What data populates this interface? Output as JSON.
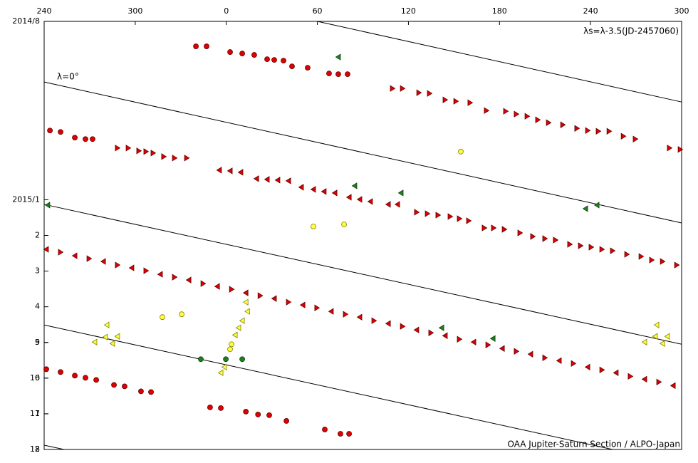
{
  "chart_data": {
    "type": "scatter",
    "annotations": [
      "λs=λ-3.5(JD-2457060)",
      "λ=0°",
      "OAA Jupiter-Saturn Section / ALPO-Japan"
    ],
    "xlim": [
      -120,
      300
    ],
    "xticks": [
      {
        "value": -120,
        "label": "240"
      },
      {
        "value": -60,
        "label": "300"
      },
      0,
      60,
      120,
      180,
      {
        "value": 240,
        "label": "240"
      },
      {
        "value": 300,
        "label": "300"
      }
    ],
    "ylim": [
      0,
      12
    ],
    "yinverted": true,
    "yticks": [
      {
        "value": 0,
        "label": "2014/8"
      },
      9,
      10,
      11,
      12,
      {
        "value": 5,
        "label": "2015/1"
      },
      {
        "value": 6,
        "label": "2"
      },
      {
        "value": 7,
        "label": "3"
      },
      {
        "value": 8,
        "label": "4"
      },
      {
        "value": 9,
        "label": "5"
      },
      {
        "value": 10,
        "label": "6"
      },
      {
        "value": 11,
        "label": "7"
      },
      {
        "value": 12,
        "label": "8"
      }
    ],
    "lines": [
      {
        "x": [
          60,
          300
        ],
        "values": [
          0,
          2.26
        ]
      },
      {
        "x": [
          -120,
          300
        ],
        "values": [
          1.7,
          5.65
        ]
      },
      {
        "x": [
          -120,
          300
        ],
        "values": [
          5.13,
          9.05
        ]
      },
      {
        "x": [
          -120,
          254.5
        ],
        "values": [
          8.51,
          12
        ]
      },
      {
        "x": [
          -120,
          -106.9
        ],
        "values": [
          11.88,
          12
        ]
      }
    ],
    "series": [
      {
        "color": "#e00000",
        "marker": "circle",
        "x": [
          -20.0,
          -13.0,
          2.5,
          10.5,
          18.4,
          26.9,
          31.6,
          37.7,
          43.3,
          53.6,
          67.7,
          73.8,
          79.9,
          -118.6,
          -109.2,
          -99.8,
          -92.8,
          -85.7,
          -74.0,
          -67.0,
          -56.2,
          -49.6,
          -10.7,
          -3.6,
          12.9,
          20.9,
          28.3,
          39.6,
          64.9,
          75.2,
          80.9,
          -116.2,
          -109.2,
          -99.8,
          -92.8,
          -88.1
        ],
        "values": [
          0.7,
          0.7,
          0.86,
          0.9,
          0.94,
          1.06,
          1.08,
          1.1,
          1.26,
          1.3,
          1.46,
          1.48,
          1.48,
          9.75,
          9.83,
          9.93,
          9.99,
          10.05,
          10.19,
          10.23,
          10.37,
          10.39,
          10.82,
          10.84,
          10.94,
          11.02,
          11.04,
          11.2,
          11.44,
          11.56,
          11.56,
          3.06,
          3.1,
          3.26,
          3.3,
          3.3
        ]
      },
      {
        "color": "#e00000",
        "marker": "triangle-left",
        "x": [
          -4.6,
          2.5,
          9.5,
          19.9,
          26.9,
          33.9,
          41.0,
          49.4,
          57.4,
          64.4,
          71.5,
          80.9,
          87.9,
          94.9,
          106.7,
          112.8,
          -118.6,
          -99.8,
          -81.0,
          -62.3,
          -43.5,
          -24.7,
          -5.9,
          12.9,
          31.6,
          50.4,
          69.1,
          87.9,
          106.7,
          125.4,
          144.2,
          163.0,
          181.8,
          200.5,
          219.3,
          238.1,
          256.8,
          275.6,
          294.4
        ],
        "values": [
          4.17,
          4.19,
          4.23,
          4.41,
          4.43,
          4.45,
          4.47,
          4.65,
          4.71,
          4.77,
          4.81,
          4.93,
          4.99,
          5.05,
          5.13,
          5.13,
          6.39,
          6.57,
          6.73,
          6.91,
          7.09,
          7.25,
          7.43,
          7.61,
          7.77,
          7.95,
          8.13,
          8.29,
          8.47,
          8.65,
          8.81,
          8.99,
          9.17,
          9.33,
          9.51,
          9.69,
          9.85,
          10.03,
          10.21
        ]
      },
      {
        "color": "#e00000",
        "marker": "triangle-right",
        "x": [
          109.5,
          116.1,
          126.9,
          133.9,
          144.2,
          151.3,
          160.6,
          171.4,
          184.1,
          191.1,
          198.2,
          205.2,
          212.3,
          221.7,
          231.0,
          238.1,
          245.1,
          252.2,
          261.6,
          269.5,
          292.0,
          299.1,
          125.4,
          132.5,
          139.5,
          147.5,
          153.6,
          159.7,
          170.0,
          176.1,
          183.2,
          193.5,
          201.9,
          209.9,
          216.9,
          226.3,
          233.4,
          240.4,
          247.5,
          254.5,
          263.9,
          273.3,
          280.3,
          287.4,
          296.8,
          -71.7,
          -64.6,
          -57.6,
          -52.9,
          -48.2,
          -41.2,
          -34.1,
          -26.1,
          -109.2,
          -90.4,
          -71.7,
          -52.9,
          -34.1,
          -15.3,
          3.5,
          22.3,
          41.0,
          59.7,
          78.5,
          97.3,
          116.1,
          134.8,
          153.6,
          172.4,
          191.1,
          209.9,
          228.7,
          247.5,
          266.2,
          285.0
        ],
        "values": [
          1.88,
          1.88,
          2.0,
          2.02,
          2.2,
          2.24,
          2.28,
          2.5,
          2.52,
          2.6,
          2.66,
          2.76,
          2.84,
          2.9,
          3.0,
          3.06,
          3.08,
          3.08,
          3.22,
          3.3,
          3.55,
          3.59,
          5.35,
          5.39,
          5.43,
          5.47,
          5.53,
          5.59,
          5.79,
          5.79,
          5.83,
          5.93,
          6.03,
          6.09,
          6.13,
          6.25,
          6.29,
          6.33,
          6.39,
          6.43,
          6.53,
          6.59,
          6.69,
          6.73,
          6.83,
          3.55,
          3.55,
          3.63,
          3.65,
          3.69,
          3.79,
          3.83,
          3.83,
          6.47,
          6.65,
          6.83,
          6.99,
          7.17,
          7.35,
          7.51,
          7.69,
          7.87,
          8.03,
          8.21,
          8.39,
          8.55,
          8.73,
          8.91,
          9.07,
          9.25,
          9.43,
          9.59,
          9.77,
          9.95,
          10.11
        ]
      },
      {
        "color": "#ffff40",
        "marker": "circle",
        "x": [
          -42.1,
          -29.4,
          57.4,
          77.6,
          154.5,
          3.5,
          2.5
        ],
        "values": [
          8.29,
          8.21,
          5.75,
          5.69,
          3.65,
          9.05,
          9.19
        ]
      },
      {
        "color": "#ffff40",
        "marker": "triangle-left",
        "x": [
          -78.7,
          -79.7,
          -86.7,
          -71.7,
          -75.0,
          12.9,
          13.9,
          10.5,
          8.1,
          5.8,
          -1.3,
          -3.6,
          283.6,
          282.6,
          275.6,
          290.6,
          287.4
        ],
        "values": [
          8.51,
          8.85,
          8.99,
          8.83,
          9.03,
          7.87,
          8.13,
          8.39,
          8.59,
          8.79,
          9.69,
          9.85,
          8.51,
          8.83,
          8.99,
          8.83,
          9.03
        ]
      },
      {
        "color": "#208020",
        "marker": "circle",
        "x": [
          -16.8,
          -0.3,
          10.5
        ],
        "values": [
          9.47,
          9.47,
          9.47
        ]
      },
      {
        "color": "#208020",
        "marker": "triangle-left",
        "x": [
          73.8,
          84.6,
          115.1,
          -117.7,
          236.7,
          244.2,
          141.9,
          175.7
        ],
        "values": [
          1.0,
          4.61,
          4.81,
          5.15,
          5.25,
          5.15,
          8.59,
          8.89
        ]
      }
    ]
  }
}
